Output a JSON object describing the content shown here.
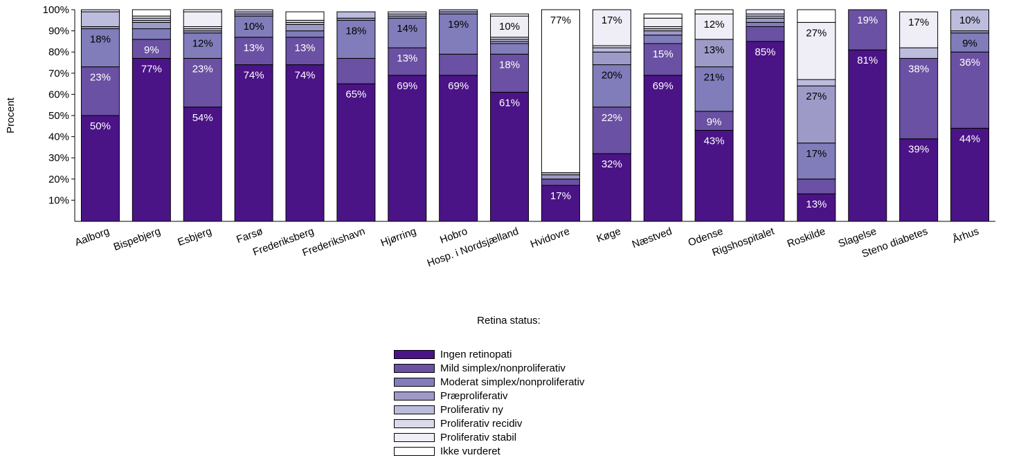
{
  "chart_data": {
    "type": "bar",
    "stacked": true,
    "ylabel": "Procent",
    "ylim": [
      0,
      100
    ],
    "yticks": [
      "10%",
      "20%",
      "30%",
      "40%",
      "50%",
      "60%",
      "70%",
      "80%",
      "90%",
      "100%"
    ],
    "legend_title": "Retina status:",
    "legend_position": "bottom",
    "categories": [
      "Aalborg",
      "Bispebjerg",
      "Esbjerg",
      "Farsø",
      "Frederiksberg",
      "Frederikshavn",
      "Hjørring",
      "Hobro",
      "Hosp. i Nordsjælland",
      "Hvidovre",
      "Køge",
      "Næstved",
      "Odense",
      "Rigshospitalet",
      "Roskilde",
      "Slagelse",
      "Steno diabetes",
      "Århus"
    ],
    "series": [
      {
        "name": "Ingen retinopati",
        "color": "#4a1486",
        "values": [
          50,
          77,
          54,
          74,
          74,
          65,
          69,
          69,
          61,
          17,
          32,
          69,
          43,
          85,
          13,
          81,
          39,
          44
        ],
        "labels": [
          "50%",
          "77%",
          "54%",
          "74%",
          "74%",
          "65%",
          "69%",
          "69%",
          "61%",
          "17%",
          "32%",
          "69%",
          "43%",
          "85%",
          "13%",
          "81%",
          "39%",
          "44%"
        ]
      },
      {
        "name": "Mild simplex/nonproliferativ",
        "color": "#6a51a3",
        "values": [
          23,
          9,
          23,
          13,
          13,
          12,
          13,
          10,
          18,
          3,
          22,
          15,
          9,
          7,
          7,
          19,
          38,
          36
        ],
        "labels": [
          "23%",
          "9%",
          "23%",
          "13%",
          "13%",
          "",
          "13%",
          "",
          "18%",
          "",
          "22%",
          "15%",
          "9%",
          "",
          "",
          "19%",
          "38%",
          "36%"
        ]
      },
      {
        "name": "Moderat simplex/nonproliferativ",
        "color": "#807dba",
        "values": [
          18,
          5,
          12,
          10,
          3,
          18,
          14,
          19,
          5,
          0,
          20,
          4,
          21,
          2,
          17,
          0,
          0,
          9
        ],
        "labels": [
          "18%",
          "",
          "12%",
          "10%",
          "",
          "18%",
          "14%",
          "19%",
          "",
          "",
          "20%",
          "",
          "21%",
          "",
          "17%",
          "",
          "",
          "9%"
        ]
      },
      {
        "name": "Præproliferativ",
        "color": "#9e9ac8",
        "values": [
          1,
          3,
          1,
          1,
          3,
          1,
          1,
          1,
          1,
          2,
          6,
          2,
          13,
          2,
          27,
          0,
          0,
          1
        ],
        "labels": [
          "",
          "",
          "",
          "",
          "",
          "",
          "",
          "",
          "",
          "",
          "",
          "",
          "13%",
          "",
          "27%",
          "",
          "",
          ""
        ]
      },
      {
        "name": "Proliferativ ny",
        "color": "#bcbddc",
        "values": [
          7,
          1,
          1,
          1,
          1,
          3,
          1,
          1,
          1,
          1,
          2,
          1,
          0,
          1,
          3,
          0,
          5,
          10
        ],
        "labels": [
          "",
          "",
          "",
          "",
          "",
          "",
          "",
          "",
          "",
          "",
          "",
          "",
          "",
          "",
          "",
          "",
          "",
          "10%"
        ]
      },
      {
        "name": "Proliferativ recidiv",
        "color": "#dadaeb",
        "values": [
          1,
          1,
          1,
          0,
          1,
          0,
          0,
          0,
          1,
          0,
          1,
          1,
          0,
          1,
          0,
          0,
          0,
          0
        ],
        "labels": [
          "",
          "",
          "",
          "",
          "",
          "",
          "",
          "",
          "",
          "",
          "",
          "",
          "",
          "",
          "",
          "",
          "",
          ""
        ]
      },
      {
        "name": "Proliferativ stabil",
        "color": "#efedf5",
        "values": [
          0,
          1,
          7,
          1,
          0,
          0,
          1,
          0,
          10,
          0,
          17,
          4,
          12,
          2,
          27,
          0,
          17,
          0
        ],
        "labels": [
          "",
          "",
          "",
          "",
          "",
          "",
          "",
          "",
          "10%",
          "",
          "17%",
          "",
          "12%",
          "",
          "27%",
          "",
          "17%",
          ""
        ]
      },
      {
        "name": "Ikke vurderet",
        "color": "#ffffff",
        "values": [
          0,
          3,
          1,
          0,
          4,
          0,
          0,
          0,
          1,
          77,
          0,
          2,
          2,
          0,
          6,
          0,
          0,
          0
        ],
        "labels": [
          "",
          "",
          "",
          "",
          "",
          "",
          "",
          "",
          "",
          "77%",
          "",
          "",
          "",
          "",
          "",
          "",
          "",
          ""
        ]
      }
    ]
  }
}
